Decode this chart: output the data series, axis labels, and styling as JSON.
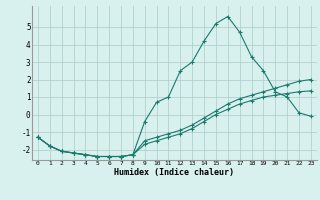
{
  "xlabel": "Humidex (Indice chaleur)",
  "bg_color": "#d8f0ee",
  "grid_color": "#aaccca",
  "line_color": "#1a7a6e",
  "xlim": [
    -0.5,
    23.5
  ],
  "ylim": [
    -2.6,
    6.2
  ],
  "yticks": [
    -2,
    -1,
    0,
    1,
    2,
    3,
    4,
    5
  ],
  "xticks": [
    0,
    1,
    2,
    3,
    4,
    5,
    6,
    7,
    8,
    9,
    10,
    11,
    12,
    13,
    14,
    15,
    16,
    17,
    18,
    19,
    20,
    21,
    22,
    23
  ],
  "line1_x": [
    0,
    1,
    2,
    3,
    4,
    5,
    6,
    7,
    8,
    9,
    10,
    11,
    12,
    13,
    14,
    15,
    16,
    17,
    18,
    19,
    20,
    21,
    22,
    23
  ],
  "line1_y": [
    -1.3,
    -1.8,
    -2.1,
    -2.2,
    -2.3,
    -2.4,
    -2.4,
    -2.4,
    -2.3,
    -0.4,
    0.7,
    1.0,
    2.5,
    3.0,
    4.2,
    5.2,
    5.6,
    4.7,
    3.3,
    2.5,
    1.3,
    1.0,
    0.1,
    -0.1
  ],
  "line2_x": [
    0,
    1,
    2,
    3,
    4,
    5,
    6,
    7,
    8,
    9,
    10,
    11,
    12,
    13,
    14,
    15,
    16,
    17,
    18,
    19,
    20,
    21,
    22,
    23
  ],
  "line2_y": [
    -1.3,
    -1.8,
    -2.1,
    -2.2,
    -2.3,
    -2.4,
    -2.4,
    -2.4,
    -2.3,
    -1.5,
    -1.3,
    -1.1,
    -0.9,
    -0.6,
    -0.2,
    0.2,
    0.6,
    0.9,
    1.1,
    1.3,
    1.5,
    1.7,
    1.9,
    2.0
  ],
  "line3_x": [
    0,
    1,
    2,
    3,
    4,
    5,
    6,
    7,
    8,
    9,
    10,
    11,
    12,
    13,
    14,
    15,
    16,
    17,
    18,
    19,
    20,
    21,
    22,
    23
  ],
  "line3_y": [
    -1.3,
    -1.8,
    -2.1,
    -2.2,
    -2.3,
    -2.4,
    -2.4,
    -2.4,
    -2.3,
    -1.7,
    -1.5,
    -1.3,
    -1.1,
    -0.8,
    -0.4,
    -0.0,
    0.3,
    0.6,
    0.8,
    1.0,
    1.1,
    1.2,
    1.3,
    1.35
  ]
}
